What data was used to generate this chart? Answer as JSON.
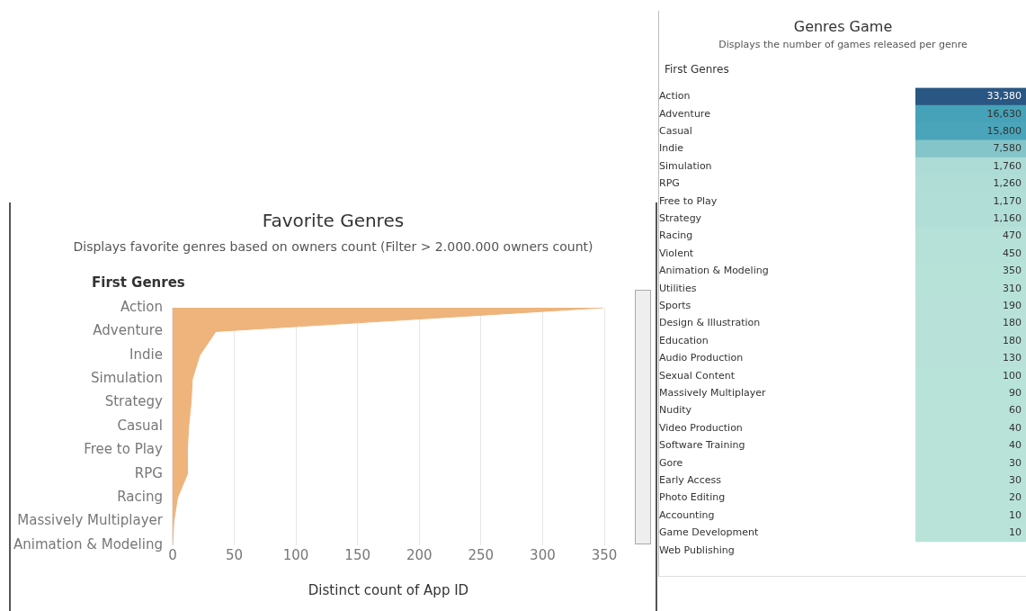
{
  "chart_data": [
    {
      "type": "area",
      "orientation": "horizontal",
      "title": "Favorite Genres",
      "subtitle": "Displays favorite genres based on owners count (Filter > 2.000.000 owners count)",
      "ylabel": "First Genres",
      "xlabel": "Distinct count of App ID",
      "categories": [
        "Action",
        "Adventure",
        "Indie",
        "Simulation",
        "Strategy",
        "Casual",
        "Free to Play",
        "RPG",
        "Racing",
        "Massively Multiplayer",
        "Animation & Modeling"
      ],
      "values": [
        349,
        35,
        22,
        16,
        15,
        13,
        12,
        12,
        4,
        1,
        0
      ],
      "color": "#eeb47c",
      "xlim": [
        0,
        350
      ],
      "xticks": [
        0,
        50,
        100,
        150,
        200,
        250,
        300,
        350
      ],
      "grid": "x"
    },
    {
      "type": "heatmap",
      "title": "Genres Game",
      "subtitle": "Displays the number of games released per genre",
      "ylabel": "First Genres",
      "categories": [
        null
      ],
      "y_categories": [
        "Action",
        "Adventure",
        "Casual",
        "Indie",
        "Simulation",
        "RPG",
        "Free to Play",
        "Strategy",
        "Racing",
        "Violent",
        "Animation & Modeling",
        "Utilities",
        "Sports",
        "Design & Illustration",
        "Education",
        "Audio Production",
        "Sexual Content",
        "Massively Multiplayer",
        "Nudity",
        "Video Production",
        "Software Training",
        "Gore",
        "Early Access",
        "Photo Editing",
        "Accounting",
        "Game Development",
        "Web Publishing"
      ],
      "cells": [
        [
          33380
        ],
        [
          16630
        ],
        [
          15800
        ],
        [
          7580
        ],
        [
          1760
        ],
        [
          1260
        ],
        [
          1170
        ],
        [
          1160
        ],
        [
          470
        ],
        [
          450
        ],
        [
          350
        ],
        [
          310
        ],
        [
          190
        ],
        [
          180
        ],
        [
          180
        ],
        [
          130
        ],
        [
          100
        ],
        [
          90
        ],
        [
          60
        ],
        [
          40
        ],
        [
          40
        ],
        [
          30
        ],
        [
          30
        ],
        [
          20
        ],
        [
          10
        ],
        [
          10
        ],
        [
          null
        ]
      ],
      "cell_labels": [
        [
          "33,380"
        ],
        [
          "16,630"
        ],
        [
          "15,800"
        ],
        [
          "7,580"
        ],
        [
          "1,760"
        ],
        [
          "1,260"
        ],
        [
          "1,170"
        ],
        [
          "1,160"
        ],
        [
          "470"
        ],
        [
          "450"
        ],
        [
          "350"
        ],
        [
          "310"
        ],
        [
          "190"
        ],
        [
          "180"
        ],
        [
          "180"
        ],
        [
          "130"
        ],
        [
          "100"
        ],
        [
          "90"
        ],
        [
          "60"
        ],
        [
          "40"
        ],
        [
          "40"
        ],
        [
          "30"
        ],
        [
          "30"
        ],
        [
          "20"
        ],
        [
          "10"
        ],
        [
          "10"
        ],
        [
          null
        ]
      ]
    }
  ]
}
